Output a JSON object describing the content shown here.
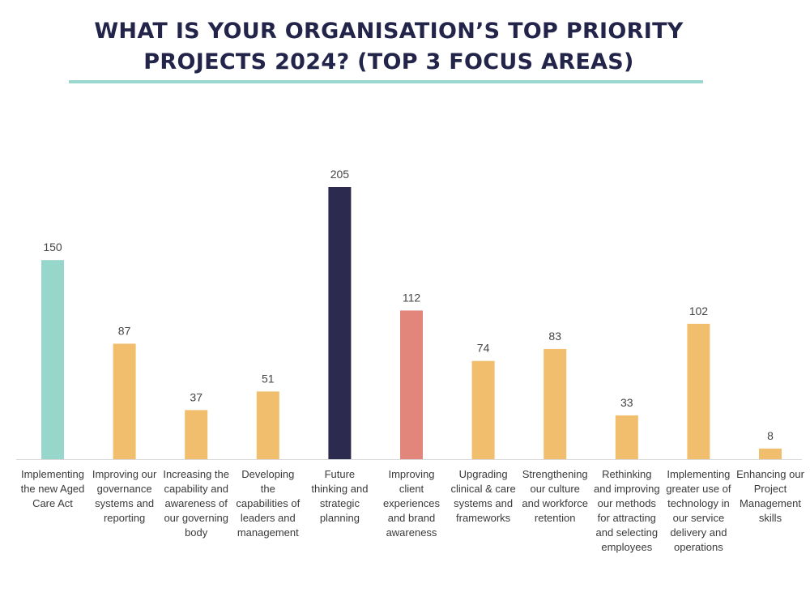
{
  "title_lines": [
    "WHAT IS YOUR ORGANISATION’S TOP PRIORITY",
    "PROJECTS 2024? (TOP 3 FOCUS AREAS)"
  ],
  "colors": {
    "title": "#23244a",
    "title_rule": "#9bd6cf",
    "bar_default": "#f0be6c",
    "axis": "#d9d9d9",
    "value_label": "#444444"
  },
  "chart_data": {
    "type": "bar",
    "title": "WHAT IS YOUR ORGANISATION’S TOP PRIORITY PROJECTS 2024? (TOP 3 FOCUS AREAS)",
    "xlabel": "",
    "ylabel": "",
    "ylim": [
      0,
      205
    ],
    "grid": false,
    "legend": "none",
    "categories": [
      [
        "Implementing",
        "the new Aged",
        "Care Act"
      ],
      [
        "Improving our",
        "governance",
        "systems and",
        "reporting"
      ],
      [
        "Increasing the",
        "capability and",
        "awareness of",
        "our governing",
        "body"
      ],
      [
        "Developing",
        "the",
        "capabilities of",
        "leaders and",
        "management"
      ],
      [
        "Future",
        "thinking and",
        "strategic",
        "planning"
      ],
      [
        "Improving",
        "client",
        "experiences",
        "and brand",
        "awareness"
      ],
      [
        "Upgrading",
        "clinical & care",
        "systems and",
        "frameworks"
      ],
      [
        "Strengthening",
        "our culture",
        "and workforce",
        "retention"
      ],
      [
        "Rethinking",
        "and improving",
        "our methods",
        "for attracting",
        "and selecting",
        "employees"
      ],
      [
        "Implementing",
        "greater use of",
        "technology in",
        "our service",
        "delivery and",
        "operations"
      ],
      [
        "Enhancing our",
        "Project",
        "Management",
        "skills"
      ]
    ],
    "values": [
      150,
      87,
      37,
      51,
      205,
      112,
      74,
      83,
      33,
      102,
      8
    ],
    "value_labels": [
      "150",
      "87",
      "37",
      "51",
      "205",
      "112",
      "74",
      "83",
      "33",
      "102",
      "8"
    ],
    "bar_colors": [
      "#97d6cb",
      "#f0be6c",
      "#f0be6c",
      "#f0be6c",
      "#2c2b4f",
      "#e2857a",
      "#f0be6c",
      "#f0be6c",
      "#f0be6c",
      "#f0be6c",
      "#f0be6c"
    ]
  }
}
